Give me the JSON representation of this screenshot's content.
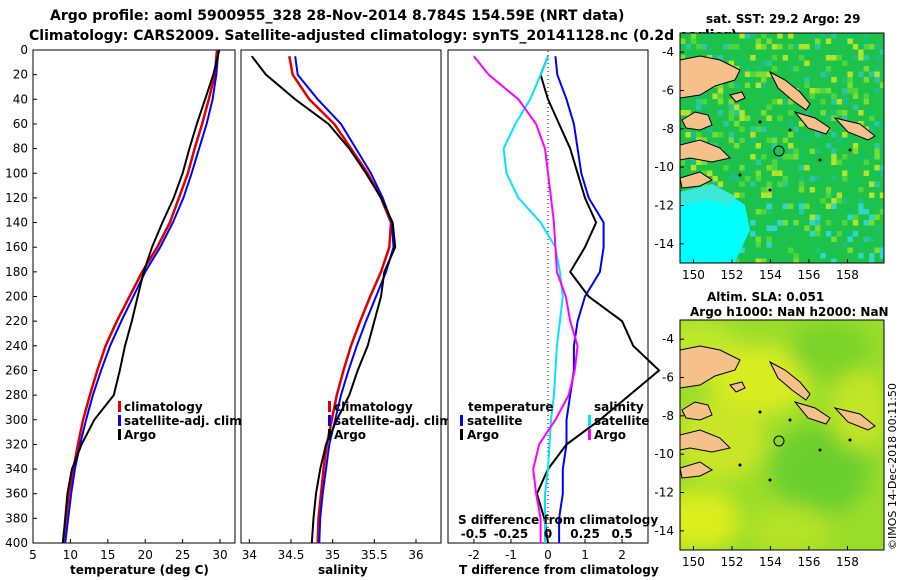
{
  "header": {
    "line1": "Argo profile: aoml 5900955_328 28-Nov-2014 8.784S 154.59E (NRT data)",
    "line2": "Climatology: CARS2009. Satellite-adjusted climatology: synTS_20141128.nc (0.2d earlier)"
  },
  "credit": "©IMOS 14-Dec-2018 00:11:50",
  "colors": {
    "climatology": "#e00000",
    "satellite": "#0000ff",
    "argo": "#000000",
    "salinity_diff_clim": "#ff00ff",
    "salinity_diff_sat": "#00e5ff"
  },
  "chart_data": [
    {
      "type": "line",
      "id": "temperature",
      "xlabel": "temperature (deg C)",
      "ylabel": "",
      "xlim": [
        5,
        32
      ],
      "ylim": [
        400,
        0
      ],
      "xticks": [
        5,
        10,
        15,
        20,
        25,
        30
      ],
      "yticks": [
        0,
        20,
        40,
        60,
        80,
        100,
        120,
        140,
        160,
        180,
        200,
        220,
        240,
        260,
        280,
        300,
        320,
        340,
        360,
        380,
        400
      ],
      "legend": [
        "climatology",
        "satellite-adj. clim.",
        "Argo"
      ],
      "series": [
        {
          "name": "climatology",
          "depth": [
            0,
            20,
            40,
            60,
            80,
            100,
            120,
            140,
            160,
            180,
            200,
            220,
            240,
            260,
            280,
            300,
            320,
            340,
            360,
            380,
            400
          ],
          "values": [
            29.6,
            29.3,
            28.5,
            27.6,
            26.6,
            25.7,
            24.5,
            23.3,
            21.6,
            19.6,
            17.9,
            16.2,
            14.7,
            13.6,
            12.6,
            11.7,
            11.0,
            10.4,
            9.8,
            9.4,
            9.0
          ]
        },
        {
          "name": "satellite-adj. clim.",
          "depth": [
            0,
            20,
            40,
            60,
            80,
            100,
            120,
            140,
            160,
            180,
            200,
            220,
            240,
            260,
            280,
            300,
            320,
            340,
            360,
            380,
            400
          ],
          "values": [
            29.8,
            29.5,
            29.0,
            28.2,
            27.2,
            26.2,
            25.1,
            23.7,
            22.0,
            20.0,
            18.4,
            16.8,
            15.3,
            14.1,
            13.0,
            12.1,
            11.3,
            10.6,
            10.1,
            9.7,
            9.3
          ]
        },
        {
          "name": "Argo",
          "depth": [
            0,
            20,
            40,
            60,
            80,
            100,
            120,
            140,
            160,
            180,
            200,
            220,
            240,
            260,
            280,
            300,
            320,
            340,
            360,
            380,
            400
          ],
          "values": [
            29.9,
            29.1,
            28.0,
            26.9,
            25.9,
            25.0,
            23.8,
            22.3,
            20.9,
            19.8,
            19.0,
            18.2,
            17.3,
            16.6,
            15.8,
            13.2,
            11.5,
            10.2,
            9.6,
            9.3,
            9.0
          ]
        }
      ]
    },
    {
      "type": "line",
      "id": "salinity",
      "xlabel": "salinity",
      "ylabel": "",
      "xlim": [
        33.9,
        36.3
      ],
      "ylim": [
        400,
        0
      ],
      "xticks": [
        34,
        34.5,
        35,
        35.5,
        36
      ],
      "legend": [
        "climatology",
        "satellite-adj. clim.",
        "Argo"
      ],
      "series": [
        {
          "name": "climatology",
          "depth": [
            5,
            20,
            40,
            60,
            80,
            100,
            120,
            140,
            160,
            180,
            200,
            220,
            240,
            260,
            280,
            300,
            320,
            340,
            360,
            380,
            400
          ],
          "values": [
            34.48,
            34.52,
            34.72,
            35.02,
            35.22,
            35.42,
            35.58,
            35.7,
            35.68,
            35.58,
            35.45,
            35.33,
            35.22,
            35.13,
            35.05,
            34.99,
            34.93,
            34.89,
            34.86,
            34.83,
            34.82
          ]
        },
        {
          "name": "satellite-adj. clim.",
          "depth": [
            5,
            20,
            40,
            60,
            80,
            100,
            120,
            140,
            160,
            180,
            200,
            220,
            240,
            260,
            280,
            300,
            320,
            340,
            360,
            380,
            400
          ],
          "values": [
            34.55,
            34.58,
            34.82,
            35.1,
            35.28,
            35.46,
            35.6,
            35.71,
            35.73,
            35.64,
            35.52,
            35.4,
            35.29,
            35.19,
            35.1,
            35.03,
            34.96,
            34.92,
            34.88,
            34.85,
            34.84
          ]
        },
        {
          "name": "Argo",
          "depth": [
            5,
            20,
            40,
            60,
            80,
            100,
            120,
            140,
            160,
            180,
            200,
            220,
            240,
            260,
            280,
            300,
            320,
            340,
            360,
            380,
            400
          ],
          "values": [
            34.03,
            34.2,
            34.55,
            34.95,
            35.2,
            35.4,
            35.58,
            35.72,
            35.75,
            35.62,
            35.58,
            35.5,
            35.42,
            35.3,
            35.2,
            35.05,
            34.92,
            34.85,
            34.8,
            34.77,
            34.75
          ]
        }
      ]
    },
    {
      "type": "line",
      "id": "difference",
      "xlabel": "T difference from climatology",
      "xlabel_top": "S difference from climatology",
      "xlim": [
        -2.7,
        2.7
      ],
      "ylim": [
        400,
        0
      ],
      "xticks": [
        -2,
        -1,
        0,
        1,
        2
      ],
      "xtick_labels_top": [
        "-0.5",
        "-0.25",
        "0",
        "0.25",
        "0.5"
      ],
      "legend_left_title": "temperature",
      "legend_right_title": "salinity",
      "legend_left": [
        "satellite",
        "Argo"
      ],
      "legend_right": [
        "satellite",
        "Argo"
      ],
      "series": [
        {
          "name": "temperature satellite",
          "depth": [
            5,
            20,
            40,
            60,
            80,
            100,
            120,
            140,
            160,
            180,
            200,
            220,
            240,
            260,
            280,
            300,
            320,
            340,
            360,
            380,
            400
          ],
          "values": [
            0.2,
            0.25,
            0.5,
            0.7,
            0.8,
            0.9,
            1.1,
            1.5,
            1.5,
            1.4,
            1.0,
            0.8,
            0.7,
            0.7,
            0.6,
            0.5,
            0.5,
            0.4,
            0.4,
            0.3,
            0.3
          ]
        },
        {
          "name": "temperature Argo",
          "depth": [
            5,
            20,
            40,
            60,
            80,
            100,
            120,
            140,
            160,
            180,
            200,
            220,
            240,
            260,
            280,
            300,
            320,
            340,
            360,
            380,
            400
          ],
          "values": [
            0.0,
            -0.2,
            0.0,
            0.3,
            0.6,
            0.8,
            1.0,
            1.3,
            1.0,
            0.6,
            1.1,
            2.0,
            2.3,
            3.0,
            2.2,
            1.4,
            0.5,
            0.0,
            -0.3,
            -0.1,
            0.0
          ]
        },
        {
          "name": "salinity satellite",
          "depth": [
            5,
            20,
            40,
            60,
            80,
            100,
            120,
            140,
            160,
            180,
            200,
            220,
            240,
            260,
            280,
            300,
            320,
            340,
            360,
            380,
            400
          ],
          "values": [
            0.0,
            -0.05,
            -0.12,
            -0.22,
            -0.3,
            -0.28,
            -0.2,
            -0.05,
            0.05,
            0.08,
            0.1,
            0.08,
            0.06,
            0.05,
            0.04,
            0.02,
            0.01,
            0.0,
            -0.02,
            -0.02,
            -0.02
          ]
        },
        {
          "name": "salinity Argo",
          "depth": [
            5,
            20,
            40,
            60,
            80,
            100,
            120,
            140,
            160,
            180,
            200,
            220,
            240,
            260,
            280,
            300,
            320,
            340,
            360,
            380,
            400
          ],
          "values": [
            -0.5,
            -0.4,
            -0.2,
            -0.08,
            -0.02,
            0.0,
            0.02,
            0.04,
            0.05,
            0.06,
            0.12,
            0.15,
            0.2,
            0.18,
            0.14,
            0.05,
            -0.06,
            -0.1,
            -0.08,
            -0.05,
            -0.05
          ]
        }
      ]
    },
    {
      "type": "heatmap",
      "id": "sst-map",
      "title": "sat. SST: 29.2 Argo: 29",
      "xticks": [
        150,
        152,
        154,
        156,
        158
      ],
      "yticks": [
        -4,
        -6,
        -8,
        -10,
        -12,
        -14
      ],
      "xlim": [
        149.3,
        159.9
      ],
      "ylim": [
        -15,
        -3
      ],
      "argo_marker": [
        154.59,
        -8.784
      ]
    },
    {
      "type": "heatmap",
      "id": "sla-map",
      "title_line1": "Altim. SLA: 0.051",
      "title_line2": "Argo h1000: NaN h2000: NaN",
      "xticks": [
        150,
        152,
        154,
        156,
        158
      ],
      "yticks": [
        -4,
        -6,
        -8,
        -10,
        -12,
        -14
      ],
      "xlim": [
        149.3,
        159.9
      ],
      "ylim": [
        -15,
        -3
      ],
      "argo_marker": [
        154.59,
        -8.784
      ]
    }
  ]
}
